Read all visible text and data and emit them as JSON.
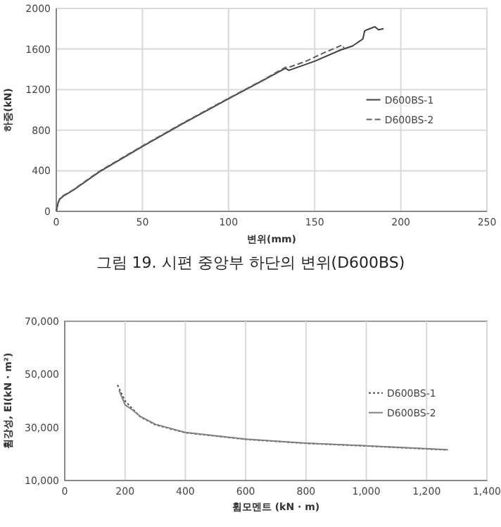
{
  "chart_data": [
    {
      "type": "line",
      "xlabel": "변위(mm)",
      "ylabel": "하중(kN)",
      "xlim": [
        0,
        250
      ],
      "ylim": [
        0,
        2000
      ],
      "xticks": [
        0,
        50,
        100,
        150,
        200,
        250
      ],
      "yticks": [
        0,
        400,
        800,
        1200,
        1600,
        2000
      ],
      "grid": true,
      "legend": "right",
      "annotations": [
        "그림 19. 시편 중앙부 하단의 변위(D600BS)"
      ],
      "series": [
        {
          "name": "D600BS-1",
          "color": "#404040",
          "line_style": "solid",
          "x": [
            0,
            1,
            2,
            4,
            10,
            25,
            50,
            75,
            100,
            120,
            133,
            135,
            150,
            165,
            172,
            178,
            179,
            182,
            185,
            187,
            190
          ],
          "values": [
            0,
            80,
            120,
            150,
            210,
            390,
            640,
            880,
            1110,
            1290,
            1410,
            1390,
            1480,
            1590,
            1630,
            1700,
            1780,
            1800,
            1820,
            1790,
            1800
          ]
        },
        {
          "name": "D600BS-2",
          "color": "#606060",
          "line_style": "dashed",
          "x": [
            0,
            1,
            2,
            4,
            10,
            25,
            50,
            75,
            100,
            120,
            133,
            135,
            145,
            155,
            166,
            167
          ],
          "values": [
            0,
            85,
            125,
            155,
            215,
            395,
            645,
            885,
            1115,
            1295,
            1420,
            1420,
            1480,
            1560,
            1640,
            1610
          ]
        }
      ]
    },
    {
      "type": "line",
      "xlabel": "휨모멘트 (kN · m)",
      "ylabel": "휨강성, EI(kN · m²)",
      "xlim": [
        0,
        1400
      ],
      "ylim": [
        10000,
        70000
      ],
      "xticks": [
        0,
        {
          "value": 200,
          "label": "200"
        },
        {
          "value": 400,
          "label": "400"
        },
        {
          "value": 600,
          "label": "600"
        },
        {
          "value": 800,
          "label": "800"
        },
        {
          "value": 1000,
          "label": "1,000"
        },
        {
          "value": 1200,
          "label": "1,200"
        },
        {
          "value": 1400,
          "label": "1,400"
        }
      ],
      "yticks": [
        {
          "value": 10000,
          "label": "10,000"
        },
        {
          "value": 30000,
          "label": "30,000"
        },
        {
          "value": 50000,
          "label": "50,000"
        },
        {
          "value": 70000,
          "label": "70,000"
        }
      ],
      "grid": "x",
      "legend": "right",
      "series": [
        {
          "name": "D600BS-1",
          "color": "#505050",
          "line_style": "dotted",
          "x": [
            175,
            200,
            250,
            300,
            400,
            600,
            800,
            1000,
            1270
          ],
          "values": [
            46000,
            40000,
            34000,
            31000,
            28000,
            25500,
            24000,
            23000,
            21500
          ]
        },
        {
          "name": "D600BS-2",
          "color": "#808080",
          "line_style": "solid",
          "x": [
            180,
            200,
            220,
            250,
            300,
            400,
            600,
            800,
            1000,
            1270
          ],
          "values": [
            44000,
            38500,
            37000,
            34200,
            31200,
            28100,
            25600,
            24100,
            23100,
            21600
          ]
        }
      ]
    }
  ]
}
